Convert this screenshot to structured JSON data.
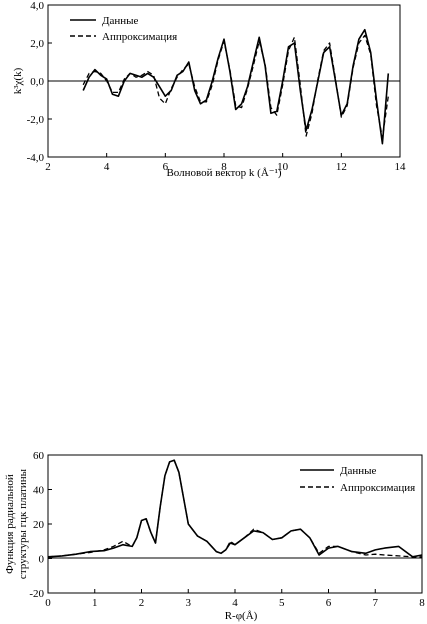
{
  "chart_data": [
    {
      "type": "line",
      "title": "",
      "xlabel": "Волновой вектор k (Å⁻¹)",
      "ylabel": "k³χ(k)",
      "xlim": [
        2,
        14
      ],
      "ylim": [
        -4,
        4
      ],
      "xticks": [
        2,
        4,
        6,
        8,
        10,
        12,
        14
      ],
      "yticks": [
        -4,
        -2,
        0,
        2,
        4
      ],
      "xtick_labels": [
        "2",
        "4",
        "6",
        "8",
        "10",
        "12",
        "14"
      ],
      "ytick_labels": [
        "-4,0",
        "-2,0",
        "0,0",
        "2,0",
        "4,0"
      ],
      "legend": "top-left",
      "series": [
        {
          "name": "Данные",
          "style": "solid",
          "x": [
            3.2,
            3.4,
            3.6,
            3.8,
            4.0,
            4.2,
            4.4,
            4.6,
            4.8,
            5.0,
            5.2,
            5.4,
            5.6,
            5.8,
            6.0,
            6.2,
            6.4,
            6.6,
            6.8,
            7.0,
            7.2,
            7.4,
            7.6,
            7.8,
            8.0,
            8.2,
            8.4,
            8.6,
            8.8,
            9.0,
            9.2,
            9.4,
            9.6,
            9.8,
            10.0,
            10.2,
            10.4,
            10.6,
            10.8,
            11.0,
            11.2,
            11.4,
            11.6,
            11.8,
            12.0,
            12.2,
            12.4,
            12.6,
            12.8,
            13.0,
            13.2,
            13.4,
            13.6
          ],
          "y": [
            -0.5,
            0.2,
            0.6,
            0.3,
            0.1,
            -0.7,
            -0.8,
            0.0,
            0.4,
            0.3,
            0.2,
            0.4,
            0.2,
            -0.3,
            -0.8,
            -0.5,
            0.3,
            0.5,
            1.0,
            -0.5,
            -1.2,
            -1.0,
            0.0,
            1.2,
            2.2,
            0.5,
            -1.5,
            -1.2,
            -0.3,
            1.0,
            2.3,
            0.8,
            -1.7,
            -1.6,
            0.0,
            1.8,
            2.0,
            -0.5,
            -2.6,
            -1.5,
            0.0,
            1.5,
            1.8,
            0.0,
            -1.8,
            -1.2,
            0.8,
            2.2,
            2.7,
            1.5,
            -1.0,
            -3.3,
            0.4
          ]
        },
        {
          "name": "Аппроксимация",
          "style": "dashed",
          "x": [
            3.2,
            3.4,
            3.6,
            3.8,
            4.0,
            4.2,
            4.4,
            4.6,
            4.8,
            5.0,
            5.2,
            5.4,
            5.6,
            5.8,
            6.0,
            6.2,
            6.4,
            6.6,
            6.8,
            7.0,
            7.2,
            7.4,
            7.6,
            7.8,
            8.0,
            8.2,
            8.4,
            8.6,
            8.8,
            9.0,
            9.2,
            9.4,
            9.6,
            9.8,
            10.0,
            10.2,
            10.4,
            10.6,
            10.8,
            11.0,
            11.2,
            11.4,
            11.6,
            11.8,
            12.0,
            12.2,
            12.4,
            12.6,
            12.8,
            13.0,
            13.2,
            13.4,
            13.6
          ],
          "y": [
            -0.2,
            0.4,
            0.5,
            0.4,
            0.0,
            -0.6,
            -0.6,
            0.1,
            0.4,
            0.2,
            0.3,
            0.5,
            0.3,
            -0.9,
            -1.2,
            -0.4,
            0.2,
            0.6,
            0.9,
            -0.3,
            -1.1,
            -1.1,
            -0.2,
            1.1,
            2.1,
            0.6,
            -1.3,
            -1.4,
            -0.4,
            0.8,
            2.1,
            0.9,
            -1.4,
            -1.8,
            -0.2,
            1.6,
            2.3,
            -0.2,
            -2.9,
            -1.7,
            0.1,
            1.6,
            2.0,
            0.1,
            -1.9,
            -1.3,
            0.7,
            2.0,
            2.4,
            1.4,
            -1.3,
            -3.0,
            -0.8
          ]
        }
      ]
    },
    {
      "type": "line",
      "title": "",
      "xlabel": "R-φ(Å)",
      "ylabel": "Функция радиальной структуры гцк платины",
      "xlim": [
        0,
        8
      ],
      "ylim": [
        -20,
        60
      ],
      "xticks": [
        0,
        1,
        2,
        3,
        4,
        5,
        6,
        7,
        8
      ],
      "yticks": [
        -20,
        0,
        20,
        40,
        60
      ],
      "xtick_labels": [
        "0",
        "1",
        "2",
        "3",
        "4",
        "5",
        "6",
        "7",
        "8"
      ],
      "ytick_labels": [
        "-20",
        "0",
        "20",
        "40",
        "60"
      ],
      "legend": "top-right",
      "series": [
        {
          "name": "Данные",
          "style": "solid",
          "x": [
            0,
            0.3,
            0.6,
            0.9,
            1.2,
            1.4,
            1.6,
            1.8,
            1.9,
            2.0,
            2.1,
            2.2,
            2.3,
            2.4,
            2.5,
            2.6,
            2.7,
            2.8,
            2.9,
            3.0,
            3.2,
            3.4,
            3.6,
            3.7,
            3.8,
            3.9,
            4.0,
            4.2,
            4.4,
            4.6,
            4.8,
            5.0,
            5.2,
            5.4,
            5.6,
            5.8,
            6.0,
            6.2,
            6.5,
            6.8,
            7.0,
            7.2,
            7.5,
            7.8,
            8.0
          ],
          "y": [
            1,
            1.5,
            2.5,
            4,
            4.5,
            6,
            8,
            7,
            12,
            22,
            23,
            15,
            9,
            30,
            48,
            56,
            57,
            50,
            35,
            20,
            13,
            10,
            4,
            3,
            5,
            9,
            8,
            12,
            16,
            15,
            11,
            12,
            16,
            17,
            12,
            2,
            6,
            7,
            4,
            3,
            5,
            6,
            7,
            1,
            2
          ]
        },
        {
          "name": "Аппроксимация",
          "style": "dashed",
          "x": [
            0,
            0.3,
            0.6,
            0.9,
            1.2,
            1.4,
            1.6,
            1.8,
            1.9,
            2.0,
            2.1,
            2.2,
            2.3,
            2.4,
            2.5,
            2.6,
            2.7,
            2.8,
            2.9,
            3.0,
            3.2,
            3.4,
            3.6,
            3.7,
            3.8,
            3.9,
            4.0,
            4.2,
            4.4,
            4.6,
            4.8,
            5.0,
            5.2,
            5.4,
            5.6,
            5.8,
            6.0,
            6.2,
            6.5,
            6.8,
            7.0,
            7.2,
            7.5,
            7.8,
            8.0
          ],
          "y": [
            1,
            1.5,
            2.5,
            3.5,
            5,
            7,
            10,
            7,
            12,
            22,
            22.5,
            15,
            9,
            30,
            48,
            56,
            57,
            50,
            35,
            20,
            13,
            10,
            4,
            3,
            5,
            10,
            8,
            12,
            17,
            15,
            11,
            12,
            16,
            17,
            12,
            3,
            7,
            7,
            4,
            2,
            2.5,
            2,
            1.5,
            1,
            1
          ]
        }
      ]
    }
  ]
}
